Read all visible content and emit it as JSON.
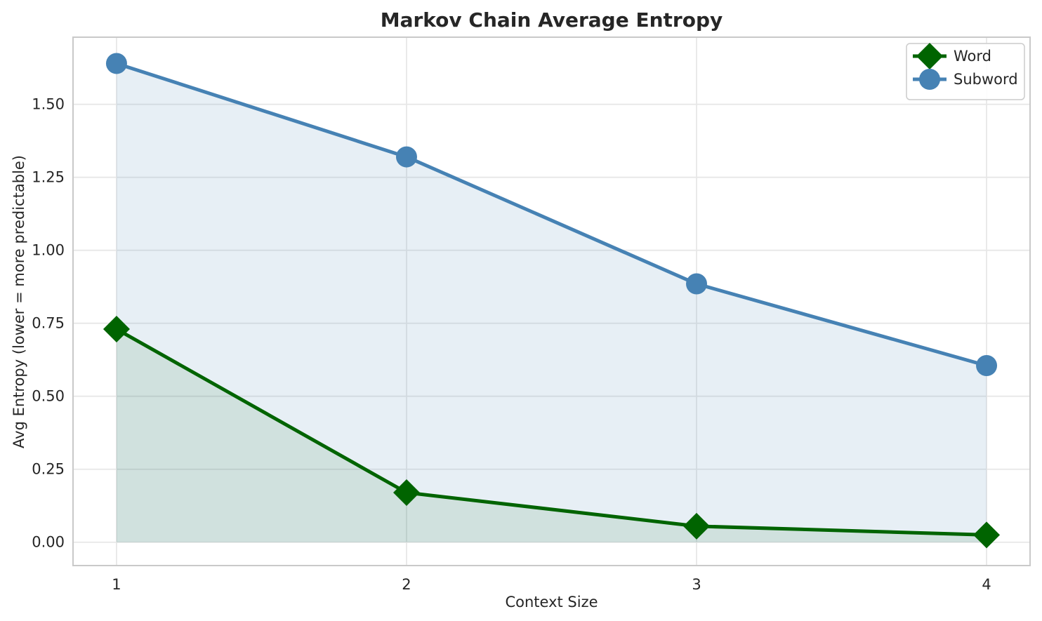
{
  "chart_data": {
    "type": "line",
    "title": "Markov Chain Average Entropy",
    "xlabel": "Context Size",
    "ylabel": "Avg Entropy (lower = more predictable)",
    "x": [
      1,
      2,
      3,
      4
    ],
    "series": [
      {
        "name": "Word",
        "values": [
          0.73,
          0.17,
          0.055,
          0.025
        ],
        "color": "#006400",
        "marker": "diamond",
        "fill_alpha": 0.1
      },
      {
        "name": "Subword",
        "values": [
          1.64,
          1.32,
          0.885,
          0.605
        ],
        "color": "#4682b4",
        "marker": "circle",
        "fill_alpha": 0.13
      }
    ],
    "xlim": [
      0.85,
      4.15
    ],
    "ylim": [
      -0.08,
      1.73
    ],
    "xticks": [
      1,
      2,
      3,
      4
    ],
    "xtick_labels": [
      "1",
      "2",
      "3",
      "4"
    ],
    "yticks": [
      0.0,
      0.25,
      0.5,
      0.75,
      1.0,
      1.25,
      1.5
    ],
    "ytick_labels": [
      "0.00",
      "0.25",
      "0.50",
      "0.75",
      "1.00",
      "1.25",
      "1.50"
    ],
    "grid": true,
    "area_fill_baseline": 0,
    "legend": {
      "position": "upper right",
      "items": [
        "Word",
        "Subword"
      ]
    },
    "colors": {
      "grid": "#e7e7e7",
      "spine": "#c9c9c9",
      "text": "#262626",
      "background": "#ffffff"
    }
  }
}
